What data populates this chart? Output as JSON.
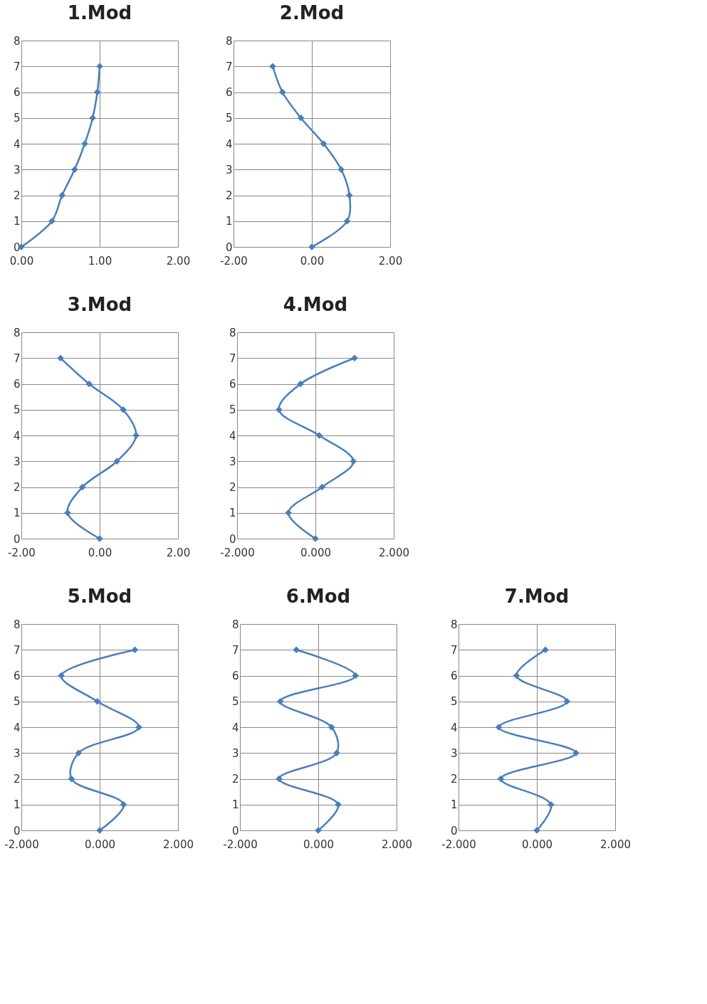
{
  "chart_data": [
    {
      "type": "line",
      "title": "1.Mod",
      "xlim": [
        0,
        2
      ],
      "xticks": [
        {
          "value": 0,
          "label": "0.00"
        },
        {
          "value": 1,
          "label": "1.00"
        },
        {
          "value": 2,
          "label": "2.00"
        }
      ],
      "ylim": [
        0,
        8
      ],
      "yticks": [
        0,
        1,
        2,
        3,
        4,
        5,
        6,
        7,
        8
      ],
      "grid": true,
      "marker": "diamond",
      "line_style": "solid",
      "series": [
        {
          "color": "#4a7ebb",
          "x": [
            0,
            0.39,
            0.52,
            0.68,
            0.81,
            0.91,
            0.97,
            1.0
          ],
          "values": [
            0,
            1,
            2,
            3,
            4,
            5,
            6,
            7
          ]
        }
      ]
    },
    {
      "type": "line",
      "title": "2.Mod",
      "xlim": [
        -2,
        2
      ],
      "xticks": [
        {
          "value": -2,
          "label": "-2.00"
        },
        {
          "value": 0,
          "label": "0.00"
        },
        {
          "value": 2,
          "label": "2.00"
        }
      ],
      "ylim": [
        0,
        8
      ],
      "yticks": [
        0,
        1,
        2,
        3,
        4,
        5,
        6,
        7,
        8
      ],
      "grid": true,
      "marker": "diamond",
      "line_style": "solid",
      "series": [
        {
          "color": "#4a7ebb",
          "x": [
            0,
            0.9,
            0.96,
            0.75,
            0.3,
            -0.28,
            -0.75,
            -1.0
          ],
          "values": [
            0,
            1,
            2,
            3,
            4,
            5,
            6,
            7
          ]
        }
      ]
    },
    {
      "type": "line",
      "title": "3.Mod",
      "xlim": [
        -2,
        2
      ],
      "xticks": [
        {
          "value": -2,
          "label": "-2.00"
        },
        {
          "value": 0,
          "label": "0.00"
        },
        {
          "value": 2,
          "label": "2.00"
        }
      ],
      "ylim": [
        0,
        8
      ],
      "yticks": [
        0,
        1,
        2,
        3,
        4,
        5,
        6,
        7,
        8
      ],
      "grid": true,
      "marker": "diamond",
      "line_style": "solid",
      "series": [
        {
          "color": "#4a7ebb",
          "x": [
            0,
            -0.82,
            -0.44,
            0.44,
            0.93,
            0.6,
            -0.27,
            -1.0
          ],
          "values": [
            0,
            1,
            2,
            3,
            4,
            5,
            6,
            7
          ]
        }
      ]
    },
    {
      "type": "line",
      "title": "4.Mod",
      "xlim": [
        -2,
        2
      ],
      "xticks": [
        {
          "value": -2,
          "label": "-2.000"
        },
        {
          "value": 0,
          "label": "0.000"
        },
        {
          "value": 2,
          "label": "2.000"
        }
      ],
      "ylim": [
        0,
        8
      ],
      "yticks": [
        0,
        1,
        2,
        3,
        4,
        5,
        6,
        7,
        8
      ],
      "grid": true,
      "marker": "diamond",
      "line_style": "solid",
      "series": [
        {
          "color": "#4a7ebb",
          "x": [
            0,
            -0.69,
            0.17,
            0.97,
            0.1,
            -0.93,
            -0.38,
            1.0
          ],
          "values": [
            0,
            1,
            2,
            3,
            4,
            5,
            6,
            7
          ]
        }
      ]
    },
    {
      "type": "line",
      "title": "5.Mod",
      "xlim": [
        -2,
        2
      ],
      "xticks": [
        {
          "value": -2,
          "label": "-2.000"
        },
        {
          "value": 0,
          "label": "0.000"
        },
        {
          "value": 2,
          "label": "2.000"
        }
      ],
      "ylim": [
        0,
        8
      ],
      "yticks": [
        0,
        1,
        2,
        3,
        4,
        5,
        6,
        7,
        8
      ],
      "grid": true,
      "marker": "diamond",
      "line_style": "solid",
      "series": [
        {
          "color": "#4a7ebb",
          "x": [
            0,
            0.61,
            -0.72,
            -0.54,
            1.0,
            -0.06,
            -0.98,
            0.9
          ],
          "values": [
            0,
            1,
            2,
            3,
            4,
            5,
            6,
            7
          ]
        }
      ]
    },
    {
      "type": "line",
      "title": "6.Mod",
      "xlim": [
        -2,
        2
      ],
      "xticks": [
        {
          "value": -2,
          "label": "-2.000"
        },
        {
          "value": 0,
          "label": "0.000"
        },
        {
          "value": 2,
          "label": "2.000"
        }
      ],
      "ylim": [
        0,
        8
      ],
      "yticks": [
        0,
        1,
        2,
        3,
        4,
        5,
        6,
        7,
        8
      ],
      "grid": true,
      "marker": "diamond",
      "line_style": "solid",
      "series": [
        {
          "color": "#4a7ebb",
          "x": [
            0,
            0.51,
            -1.0,
            0.47,
            0.34,
            -0.97,
            0.95,
            -0.56
          ],
          "values": [
            0,
            1,
            2,
            3,
            4,
            5,
            6,
            7
          ]
        }
      ]
    },
    {
      "type": "line",
      "title": "7.Mod",
      "xlim": [
        -2,
        2
      ],
      "xticks": [
        {
          "value": -2,
          "label": "-2.000"
        },
        {
          "value": 0,
          "label": "0.000"
        },
        {
          "value": 2,
          "label": "2.000"
        }
      ],
      "ylim": [
        0,
        8
      ],
      "yticks": [
        0,
        1,
        2,
        3,
        4,
        5,
        6,
        7,
        8
      ],
      "grid": true,
      "marker": "diamond",
      "line_style": "solid",
      "series": [
        {
          "color": "#4a7ebb",
          "x": [
            0,
            0.36,
            -0.92,
            1.0,
            -0.97,
            0.77,
            -0.52,
            0.22
          ],
          "values": [
            0,
            1,
            2,
            3,
            4,
            5,
            6,
            7
          ]
        }
      ]
    }
  ]
}
